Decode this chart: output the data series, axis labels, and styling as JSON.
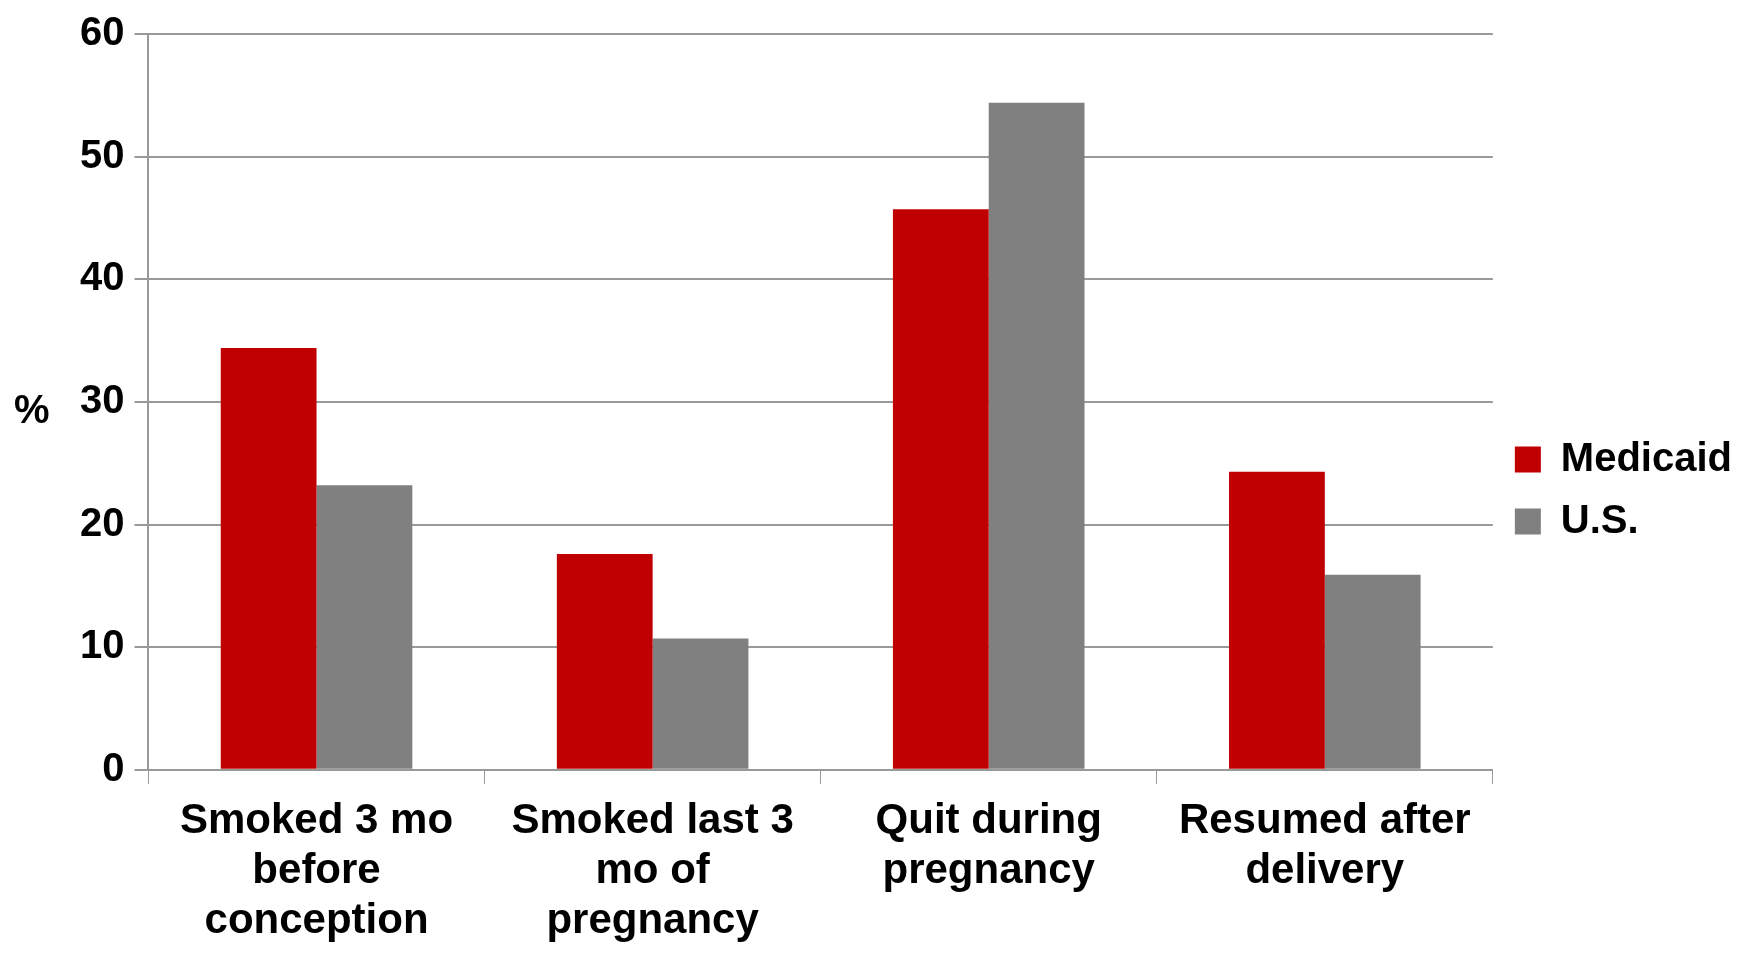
{
  "chart_data": {
    "type": "bar",
    "ylabel": "%",
    "categories": [
      "Smoked 3 mo before conception",
      "Smoked last 3 mo of pregnancy",
      "Quit during pregnancy",
      "Resumed after delivery"
    ],
    "series": [
      {
        "name": "Medicaid",
        "color": "#c00000",
        "values": [
          34.4,
          17.6,
          45.7,
          24.3
        ]
      },
      {
        "name": "U.S.",
        "color": "#808080",
        "values": [
          23.2,
          10.7,
          54.4,
          15.9
        ]
      }
    ],
    "ylim": [
      0,
      60
    ],
    "yticks": [
      0,
      10,
      20,
      30,
      40,
      50,
      60
    ],
    "grid": "y",
    "legend": "right"
  }
}
